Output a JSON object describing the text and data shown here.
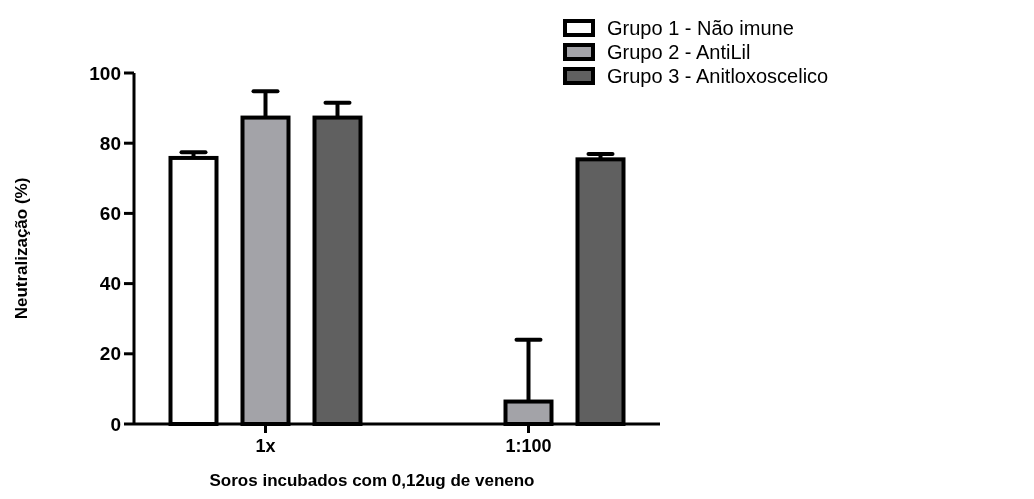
{
  "chart_data": {
    "type": "bar",
    "xlabel": "Soros incubados com 0,12ug de veneno",
    "ylabel": "Neutralização (%)",
    "categories": [
      "1x",
      "1:100"
    ],
    "series": [
      {
        "name": "Grupo 1 - Não imune",
        "color": "#ffffff",
        "values": [
          75.8,
          null
        ],
        "errors": [
          1.6,
          null
        ]
      },
      {
        "name": "Grupo 2 - AntiLil",
        "color": "#a3a3a8",
        "values": [
          87.3,
          6.4
        ],
        "errors": [
          7.5,
          17.6
        ]
      },
      {
        "name": "Grupo 3 - Anitloxoscelico",
        "color": "#606060",
        "values": [
          87.3,
          75.4
        ],
        "errors": [
          4.2,
          1.5
        ]
      }
    ],
    "ylim": [
      0,
      100
    ],
    "yticks": [
      0,
      20,
      40,
      60,
      80,
      100
    ],
    "legend": "top right",
    "grid": false
  }
}
